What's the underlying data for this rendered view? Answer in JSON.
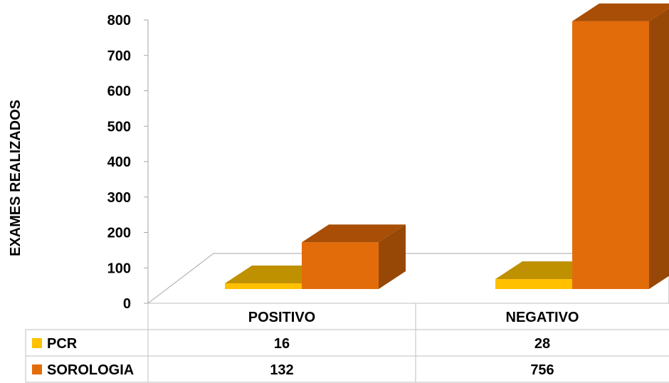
{
  "chart_data": {
    "type": "bar",
    "style": "3d-clustered-with-data-table",
    "title": "",
    "xlabel": "",
    "ylabel": "EXAMES REALIZADOS",
    "ylim": [
      0,
      800
    ],
    "yticks": [
      "0",
      "100",
      "200",
      "300",
      "400",
      "500",
      "600",
      "700",
      "800"
    ],
    "categories": [
      "POSITIVO",
      "NEGATIVO"
    ],
    "series": [
      {
        "name": "PCR",
        "values": [
          16,
          28
        ],
        "display": [
          "16",
          "28"
        ],
        "colors": {
          "front": "#ffc000",
          "top": "#bf9000",
          "side": "#bf9000"
        }
      },
      {
        "name": "SOROLOGIA",
        "values": [
          132,
          756
        ],
        "display": [
          "132",
          "756"
        ],
        "colors": {
          "front": "#e36c0a",
          "top": "#a84e06",
          "side": "#974806"
        }
      }
    ],
    "grid": false,
    "legend": "data-table"
  }
}
